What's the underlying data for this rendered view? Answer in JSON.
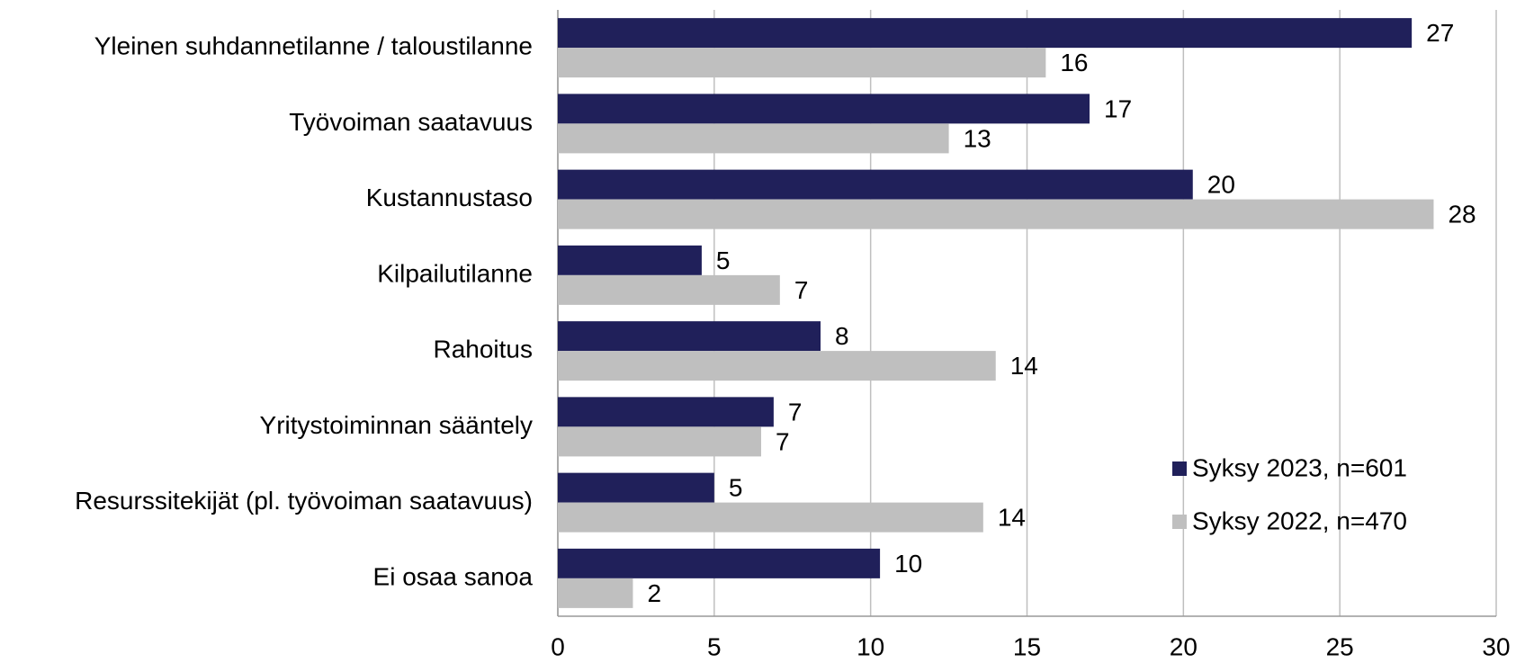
{
  "chart_data": {
    "type": "hbar",
    "categories": [
      "Yleinen suhdannetilanne / taloustilanne",
      "Työvoiman saatavuus",
      "Kustannustaso",
      "Kilpailutilanne",
      "Rahoitus",
      "Yritystoiminnan sääntely",
      "Resurssitekijät (pl. työvoiman saatavuus)",
      "Ei osaa sanoa"
    ],
    "series": [
      {
        "name": "Syksy 2023, n=601",
        "color": "#20205a",
        "values": [
          27.3,
          17.0,
          20.3,
          4.6,
          8.4,
          6.9,
          5.0,
          10.3
        ],
        "value_labels": [
          27,
          17,
          20,
          5,
          8,
          7,
          5,
          10
        ]
      },
      {
        "name": "Syksy 2022, n=470",
        "color": "#bfbfbf",
        "values": [
          15.6,
          12.5,
          28.0,
          7.1,
          14.0,
          6.5,
          13.6,
          2.4
        ],
        "value_labels": [
          16,
          13,
          28,
          7,
          14,
          7,
          14,
          2
        ]
      }
    ],
    "xlim": [
      0,
      30
    ],
    "xticks": [
      0,
      5,
      10,
      15,
      20,
      25,
      30
    ],
    "grid": true,
    "legend": "lower right"
  }
}
